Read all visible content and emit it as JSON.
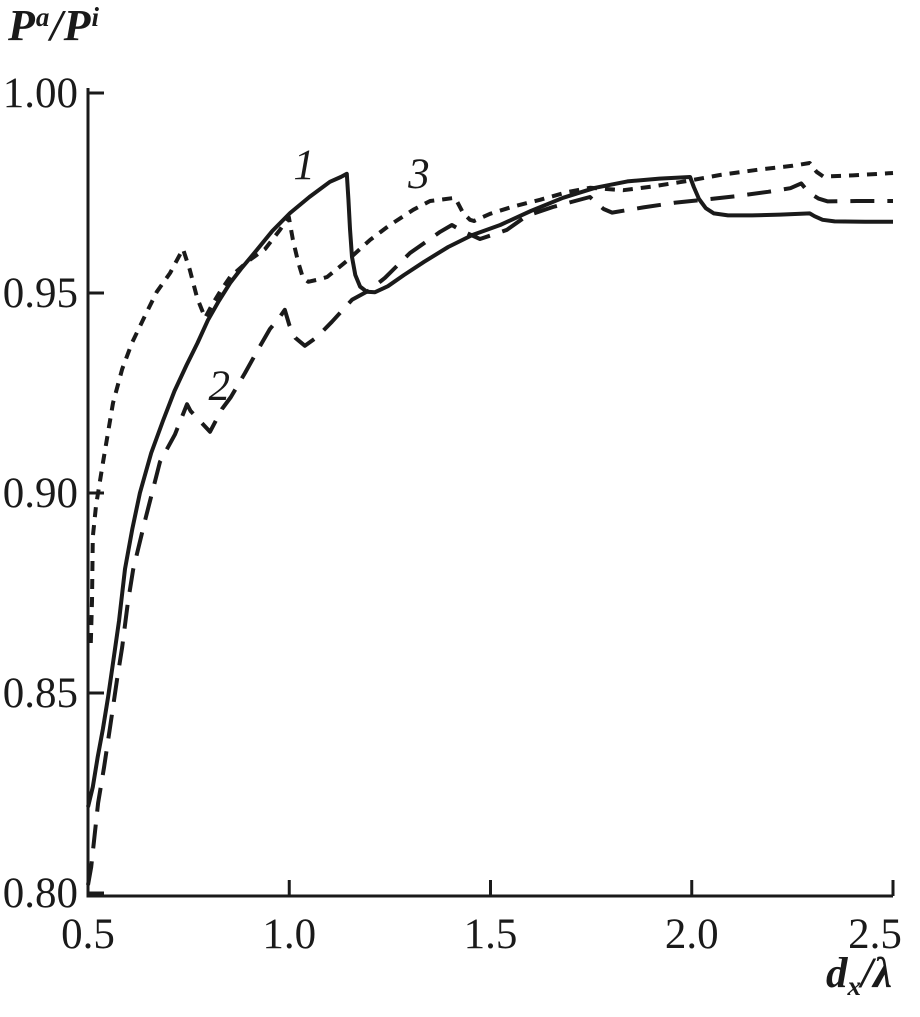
{
  "chart_data": {
    "type": "line",
    "title": "",
    "background_color": "#ffffff",
    "line_color": "#1a1a1a",
    "grid": false,
    "legend": "none",
    "x_axis": {
      "label": "d_x/λ",
      "range": [
        0.5,
        2.5
      ],
      "ticks": [
        "0.5",
        "1.0",
        "1.5",
        "2.0",
        "2.5"
      ]
    },
    "y_axis": {
      "label": "P^a/P^i",
      "range": [
        0.8,
        1.0
      ],
      "ticks": [
        "1.00",
        "0.95",
        "0.90",
        "0.85",
        "0.80"
      ]
    },
    "y_title_parts": {
      "base1": "P",
      "sup1": "a",
      "slash": "/",
      "base2": "P",
      "sup2": "i"
    },
    "x_title_parts": {
      "base": "d",
      "sub": "x",
      "slash": "/",
      "lambda": "λ"
    },
    "curve_labels": [
      {
        "text": "1",
        "x": 1.037,
        "y": 0.9823
      },
      {
        "text": "2",
        "x": 0.826,
        "y": 0.927
      },
      {
        "text": "3",
        "x": 1.322,
        "y": 0.98
      }
    ],
    "series": [
      {
        "name": "1",
        "line_style": "solid",
        "points": [
          [
            0.5,
            0.8215
          ],
          [
            0.512,
            0.8265
          ],
          [
            0.524,
            0.834
          ],
          [
            0.537,
            0.841
          ],
          [
            0.55,
            0.849
          ],
          [
            0.562,
            0.8575
          ],
          [
            0.577,
            0.868
          ],
          [
            0.592,
            0.881
          ],
          [
            0.61,
            0.891
          ],
          [
            0.629,
            0.9
          ],
          [
            0.657,
            0.91
          ],
          [
            0.686,
            0.918
          ],
          [
            0.715,
            0.9255
          ],
          [
            0.745,
            0.932
          ],
          [
            0.772,
            0.9375
          ],
          [
            0.798,
            0.9432
          ],
          [
            0.825,
            0.948
          ],
          [
            0.853,
            0.9525
          ],
          [
            0.88,
            0.956
          ],
          [
            0.915,
            0.9602
          ],
          [
            0.958,
            0.9655
          ],
          [
            1.002,
            0.97
          ],
          [
            1.05,
            0.974
          ],
          [
            1.101,
            0.9778
          ],
          [
            1.128,
            0.979
          ],
          [
            1.143,
            0.9798
          ],
          [
            1.147,
            0.9735
          ],
          [
            1.151,
            0.966
          ],
          [
            1.156,
            0.959
          ],
          [
            1.164,
            0.9545
          ],
          [
            1.176,
            0.9516
          ],
          [
            1.193,
            0.9503
          ],
          [
            1.213,
            0.9502
          ],
          [
            1.245,
            0.9517
          ],
          [
            1.285,
            0.9545
          ],
          [
            1.335,
            0.9578
          ],
          [
            1.395,
            0.9615
          ],
          [
            1.455,
            0.9645
          ],
          [
            1.524,
            0.967
          ],
          [
            1.6,
            0.9705
          ],
          [
            1.68,
            0.9738
          ],
          [
            1.76,
            0.9763
          ],
          [
            1.84,
            0.9779
          ],
          [
            1.92,
            0.9786
          ],
          [
            1.996,
            0.979
          ],
          [
            2.005,
            0.9765
          ],
          [
            2.018,
            0.9735
          ],
          [
            2.035,
            0.9712
          ],
          [
            2.055,
            0.9699
          ],
          [
            2.09,
            0.9694
          ],
          [
            2.15,
            0.9694
          ],
          [
            2.22,
            0.9696
          ],
          [
            2.293,
            0.9699
          ],
          [
            2.305,
            0.9692
          ],
          [
            2.325,
            0.9683
          ],
          [
            2.355,
            0.9679
          ],
          [
            2.43,
            0.9678
          ],
          [
            2.5,
            0.9678
          ]
        ]
      },
      {
        "name": "2",
        "line_style": "long-dash",
        "points": [
          [
            0.5,
            0.802
          ],
          [
            0.508,
            0.8065
          ],
          [
            0.525,
            0.8225
          ],
          [
            0.54,
            0.8315
          ],
          [
            0.555,
            0.8415
          ],
          [
            0.572,
            0.8533
          ],
          [
            0.585,
            0.8615
          ],
          [
            0.599,
            0.8725
          ],
          [
            0.612,
            0.8808
          ],
          [
            0.642,
            0.8933
          ],
          [
            0.679,
            0.9078
          ],
          [
            0.716,
            0.9146
          ],
          [
            0.746,
            0.9222
          ],
          [
            0.755,
            0.9205
          ],
          [
            0.778,
            0.918
          ],
          [
            0.803,
            0.9153
          ],
          [
            0.833,
            0.921
          ],
          [
            0.855,
            0.924
          ],
          [
            0.89,
            0.93
          ],
          [
            0.922,
            0.9358
          ],
          [
            0.952,
            0.941
          ],
          [
            0.975,
            0.9438
          ],
          [
            0.989,
            0.9458
          ],
          [
            1.0,
            0.942
          ],
          [
            1.015,
            0.9388
          ],
          [
            1.039,
            0.9368
          ],
          [
            1.069,
            0.939
          ],
          [
            1.106,
            0.9428
          ],
          [
            1.156,
            0.9483
          ],
          [
            1.201,
            0.9508
          ],
          [
            1.238,
            0.9538
          ],
          [
            1.3,
            0.96
          ],
          [
            1.375,
            0.9653
          ],
          [
            1.404,
            0.967
          ],
          [
            1.43,
            0.9655
          ],
          [
            1.474,
            0.9635
          ],
          [
            1.504,
            0.9645
          ],
          [
            1.541,
            0.9658
          ],
          [
            1.59,
            0.9693
          ],
          [
            1.655,
            0.9715
          ],
          [
            1.71,
            0.973
          ],
          [
            1.747,
            0.974
          ],
          [
            1.763,
            0.9725
          ],
          [
            1.781,
            0.971
          ],
          [
            1.802,
            0.9701
          ],
          [
            1.88,
            0.9714
          ],
          [
            1.96,
            0.9726
          ],
          [
            2.03,
            0.9733
          ],
          [
            2.11,
            0.9742
          ],
          [
            2.19,
            0.9753
          ],
          [
            2.245,
            0.9762
          ],
          [
            2.272,
            0.9774
          ],
          [
            2.29,
            0.9752
          ],
          [
            2.315,
            0.9736
          ],
          [
            2.338,
            0.9729
          ],
          [
            2.41,
            0.973
          ],
          [
            2.5,
            0.973
          ]
        ]
      },
      {
        "name": "3",
        "line_style": "short-dash",
        "points": [
          [
            0.507,
            0.8625
          ],
          [
            0.51,
            0.873
          ],
          [
            0.512,
            0.889
          ],
          [
            0.52,
            0.897
          ],
          [
            0.537,
            0.9075
          ],
          [
            0.562,
            0.9225
          ],
          [
            0.585,
            0.931
          ],
          [
            0.609,
            0.9375
          ],
          [
            0.64,
            0.944
          ],
          [
            0.671,
            0.9503
          ],
          [
            0.704,
            0.955
          ],
          [
            0.724,
            0.9588
          ],
          [
            0.736,
            0.961
          ],
          [
            0.753,
            0.9558
          ],
          [
            0.771,
            0.9488
          ],
          [
            0.791,
            0.9438
          ],
          [
            0.808,
            0.947
          ],
          [
            0.828,
            0.9503
          ],
          [
            0.853,
            0.954
          ],
          [
            0.898,
            0.958
          ],
          [
            0.94,
            0.961
          ],
          [
            0.977,
            0.9658
          ],
          [
            0.999,
            0.969
          ],
          [
            1.009,
            0.9633
          ],
          [
            1.022,
            0.9578
          ],
          [
            1.034,
            0.9538
          ],
          [
            1.047,
            0.9528
          ],
          [
            1.069,
            0.9533
          ],
          [
            1.094,
            0.954
          ],
          [
            1.143,
            0.958
          ],
          [
            1.201,
            0.9633
          ],
          [
            1.25,
            0.967
          ],
          [
            1.308,
            0.9708
          ],
          [
            1.35,
            0.973
          ],
          [
            1.412,
            0.9738
          ],
          [
            1.432,
            0.97
          ],
          [
            1.449,
            0.9683
          ],
          [
            1.459,
            0.968
          ],
          [
            1.499,
            0.9698
          ],
          [
            1.556,
            0.9716
          ],
          [
            1.623,
            0.9733
          ],
          [
            1.69,
            0.9752
          ],
          [
            1.747,
            0.9763
          ],
          [
            1.83,
            0.9757
          ],
          [
            1.9,
            0.9766
          ],
          [
            1.97,
            0.9777
          ],
          [
            2.0,
            0.9782
          ],
          [
            2.07,
            0.9795
          ],
          [
            2.17,
            0.9809
          ],
          [
            2.25,
            0.9818
          ],
          [
            2.293,
            0.9825
          ],
          [
            2.31,
            0.9803
          ],
          [
            2.327,
            0.9791
          ],
          [
            2.4,
            0.9794
          ],
          [
            2.5,
            0.98
          ]
        ]
      }
    ]
  }
}
